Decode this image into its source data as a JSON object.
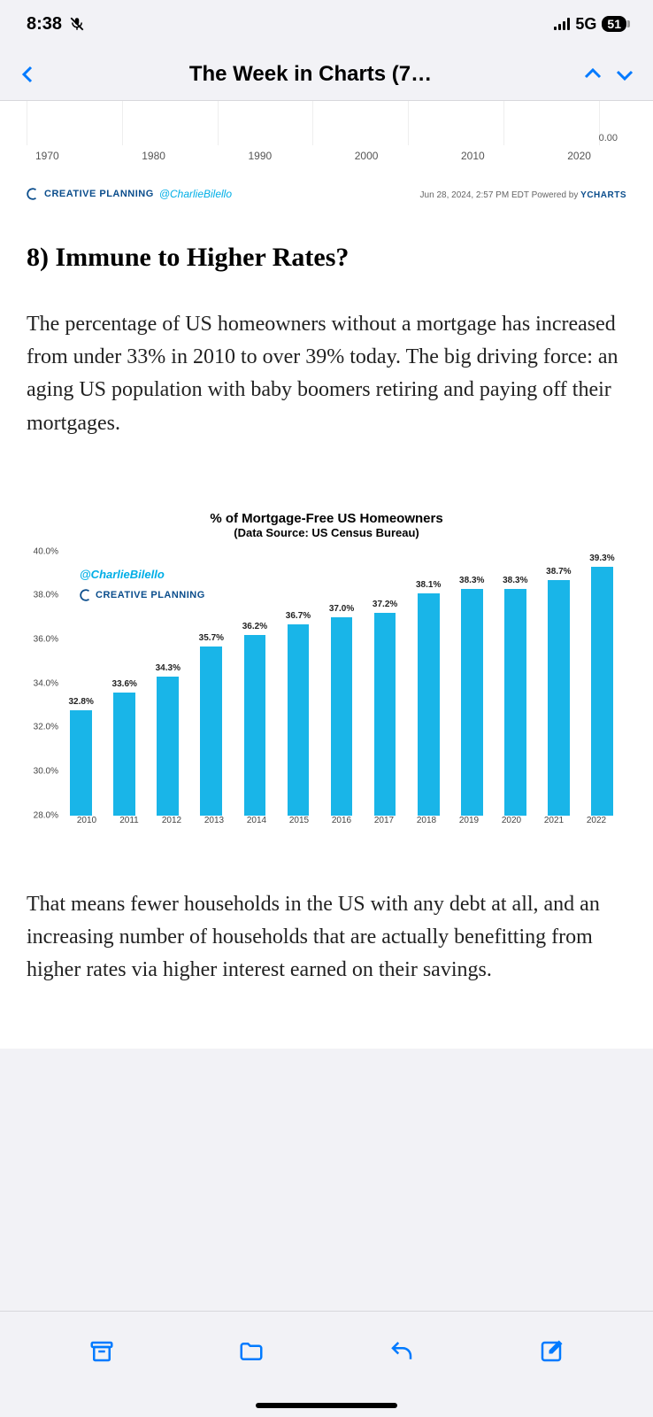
{
  "status": {
    "time": "8:38",
    "network": "5G",
    "battery": "51"
  },
  "nav": {
    "title": "The Week in Charts (7…"
  },
  "fragment_chart": {
    "x_ticks": [
      "1970",
      "1980",
      "1990",
      "2000",
      "2010",
      "2020"
    ],
    "zero_label": "0.00",
    "brand": "CREATIVE PLANNING",
    "handle": "@CharlieBilello",
    "timestamp": "Jun 28, 2024, 2:57 PM EDT",
    "powered_text": "Powered by",
    "powered_by": "YCHARTS"
  },
  "article": {
    "heading": "8) Immune to Higher Rates?",
    "para1": "The percentage of US homeowners without a mortgage has increased from under 33% in 2010 to over 39% today. The big driving force: an aging US population with baby boomers retiring and paying off their mortgages.",
    "para2": "That means fewer households in the US with any debt at all, and an increasing number of households that are actually benefitting from higher rates via higher interest earned on their savings."
  },
  "chart": {
    "type": "bar",
    "title": "% of Mortgage-Free US Homeowners",
    "subtitle": "(Data Source: US Census Bureau)",
    "watermark_handle": "@CharlieBilello",
    "watermark_brand": "CREATIVE PLANNING",
    "y_min": 28.0,
    "y_max": 40.0,
    "y_ticks": [
      "40.0%",
      "38.0%",
      "36.0%",
      "34.0%",
      "32.0%",
      "30.0%",
      "28.0%"
    ],
    "bar_color": "#19b5e8",
    "handle_color": "#00aee6",
    "brand_color": "#0a4d8c",
    "background_color": "#ffffff",
    "bar_width_pct": 70,
    "label_fontsize": 10,
    "title_fontsize": 15,
    "data": [
      {
        "year": "2010",
        "value": 32.8,
        "label": "32.8%"
      },
      {
        "year": "2011",
        "value": 33.6,
        "label": "33.6%"
      },
      {
        "year": "2012",
        "value": 34.3,
        "label": "34.3%"
      },
      {
        "year": "2013",
        "value": 35.7,
        "label": "35.7%"
      },
      {
        "year": "2014",
        "value": 36.2,
        "label": "36.2%"
      },
      {
        "year": "2015",
        "value": 36.7,
        "label": "36.7%"
      },
      {
        "year": "2016",
        "value": 37.0,
        "label": "37.0%"
      },
      {
        "year": "2017",
        "value": 37.2,
        "label": "37.2%"
      },
      {
        "year": "2018",
        "value": 38.1,
        "label": "38.1%"
      },
      {
        "year": "2019",
        "value": 38.3,
        "label": "38.3%"
      },
      {
        "year": "2020",
        "value": 38.3,
        "label": "38.3%"
      },
      {
        "year": "2021",
        "value": 38.7,
        "label": "38.7%"
      },
      {
        "year": "2022",
        "value": 39.3,
        "label": "39.3%"
      }
    ]
  }
}
